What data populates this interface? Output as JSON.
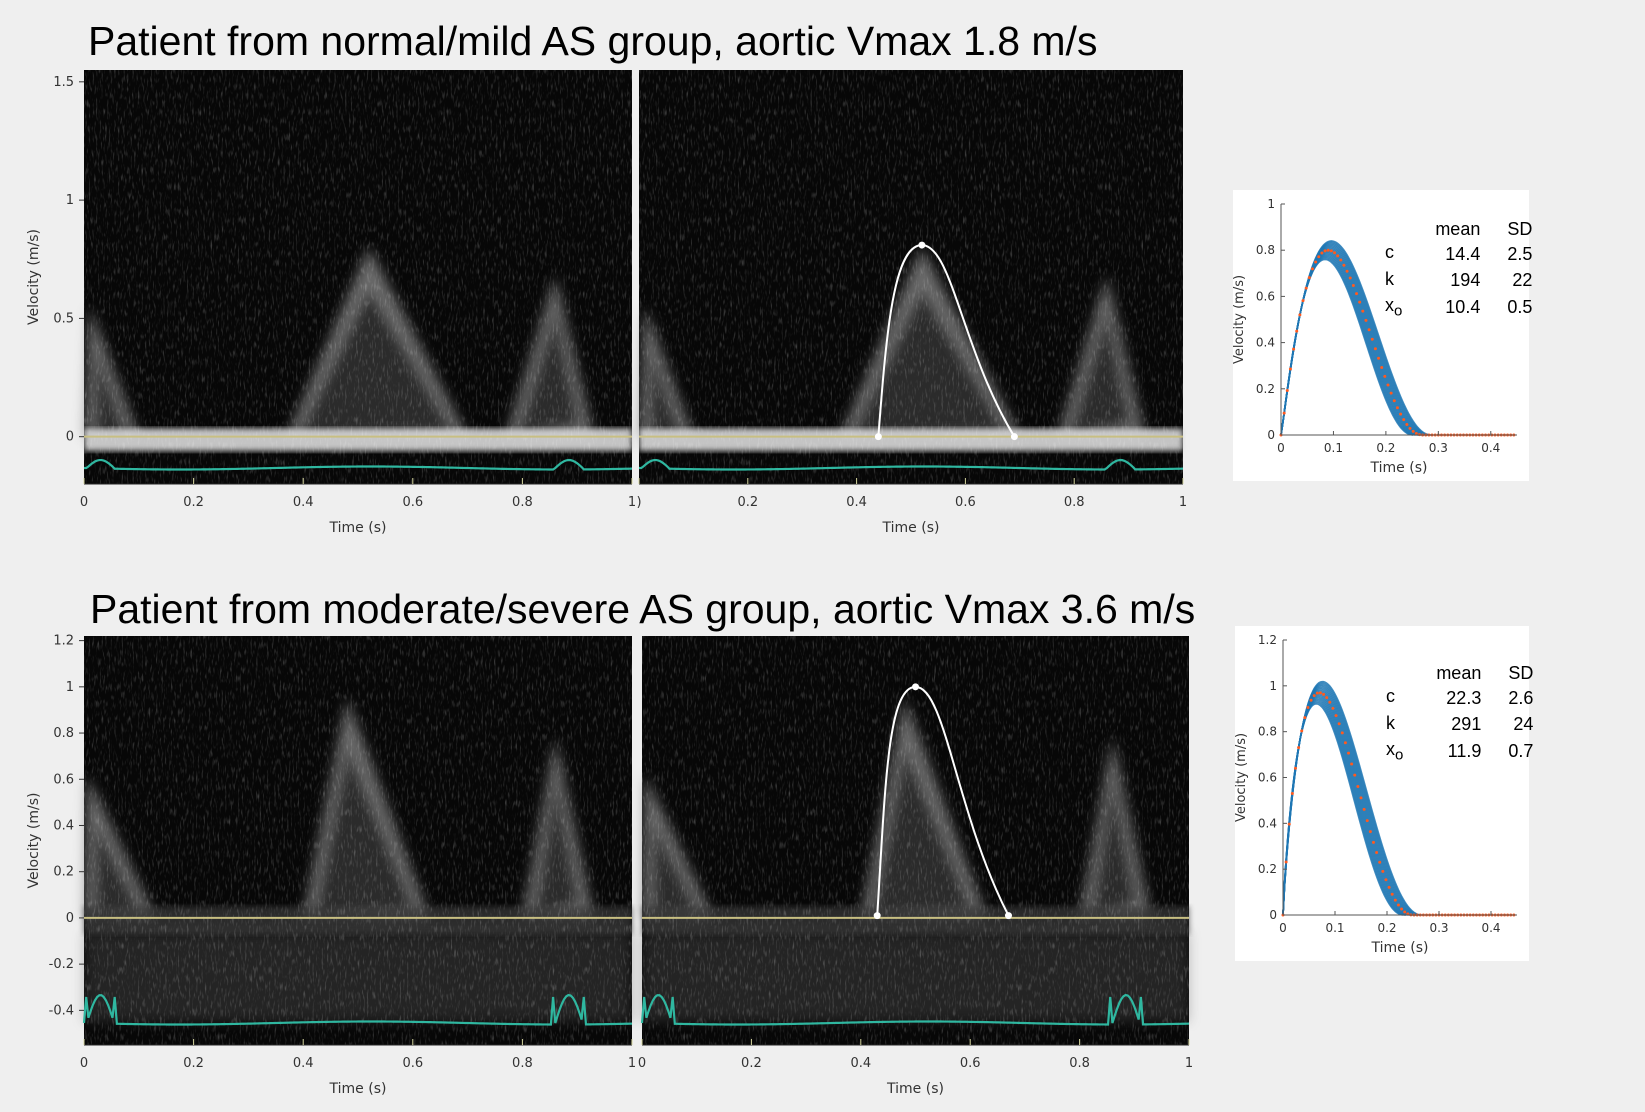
{
  "colors": {
    "background": "#efefef",
    "doppler_dark": "#070707",
    "baseline": "#c8bf82",
    "ecg": "#2fb7a0",
    "trace": "#ffffff",
    "fit_curves": "#1f77b4",
    "fit_mean": "#ff5a1f"
  },
  "titles": {
    "top": "Patient from normal/mild AS group, aortic Vmax 1.8 m/s",
    "bottom": "Patient from moderate/severe AS group, aortic Vmax 3.6 m/s"
  },
  "tables": {
    "top": {
      "header": {
        "mean": "mean",
        "sd": "SD"
      },
      "rows": [
        {
          "label": "c",
          "sub": "",
          "mean": "14.4",
          "sd": "2.5"
        },
        {
          "label": "k",
          "sub": "",
          "mean": "194",
          "sd": "22"
        },
        {
          "label": "x",
          "sub": "o",
          "mean": "10.4",
          "sd": "0.5"
        }
      ]
    },
    "bottom": {
      "header": {
        "mean": "mean",
        "sd": "SD"
      },
      "rows": [
        {
          "label": "c",
          "sub": "",
          "mean": "22.3",
          "sd": "2.6"
        },
        {
          "label": "k",
          "sub": "",
          "mean": "291",
          "sd": "24"
        },
        {
          "label": "x",
          "sub": "o",
          "mean": "11.9",
          "sd": "0.7"
        }
      ]
    }
  },
  "chart_data": [
    {
      "id": "top-left",
      "type": "line",
      "xlabel": "Time (s)",
      "ylabel": "Velocity (m/s)",
      "xlim": [
        0,
        1
      ],
      "ylim": [
        -0.2,
        1.55
      ],
      "xticks": [
        0,
        0.2,
        0.4,
        0.6,
        0.8,
        1
      ],
      "xtick_labels": [
        "0",
        "0.2",
        "0.4",
        "0.6",
        "0.8",
        "1"
      ],
      "yticks": [
        0,
        0.5,
        1,
        1.5
      ],
      "ytick_labels": [
        "0",
        "0.5",
        "1",
        "1.5"
      ],
      "baseline": 0
    },
    {
      "id": "top-middle",
      "type": "line",
      "xlabel": "Time (s)",
      "ylabel": "",
      "xlim": [
        0,
        1
      ],
      "ylim": [
        -0.2,
        1.55
      ],
      "xticks": [
        0,
        0.2,
        0.4,
        0.6,
        0.8,
        1
      ],
      "xtick_labels": [
        ")",
        "0.2",
        "0.4",
        "0.6",
        "0.8",
        "1"
      ],
      "yticks": [],
      "ytick_labels": [],
      "baseline": 0,
      "trace": {
        "points": [
          [
            0.44,
            0.0
          ],
          [
            0.52,
            0.81
          ],
          [
            0.69,
            0.0
          ]
        ],
        "peak": [
          0.52,
          0.81
        ]
      }
    },
    {
      "id": "top-right",
      "type": "line",
      "xlabel": "Time (s)",
      "ylabel": "Velocity (m/s)",
      "xlim": [
        0,
        0.45
      ],
      "ylim": [
        0,
        1
      ],
      "xticks": [
        0,
        0.1,
        0.2,
        0.3,
        0.4
      ],
      "xtick_labels": [
        "0",
        "0.1",
        "0.2",
        "0.3",
        "0.4"
      ],
      "yticks": [
        0,
        0.2,
        0.4,
        0.6,
        0.8,
        1
      ],
      "ytick_labels": [
        "0",
        "0.2",
        "0.4",
        "0.6",
        "0.8",
        "1"
      ],
      "fit": {
        "peak_velocity": 0.8,
        "peak_time": 0.09,
        "end_time": 0.27,
        "curves": 16
      }
    },
    {
      "id": "bottom-left",
      "type": "line",
      "xlabel": "Time (s)",
      "ylabel": "Velocity (m/s)",
      "xlim": [
        0,
        1
      ],
      "ylim": [
        -0.55,
        1.22
      ],
      "xticks": [
        0,
        0.2,
        0.4,
        0.6,
        0.8,
        1
      ],
      "xtick_labels": [
        "0",
        "0.2",
        "0.4",
        "0.6",
        "0.8",
        "1"
      ],
      "yticks": [
        -0.4,
        -0.2,
        0,
        0.2,
        0.4,
        0.6,
        0.8,
        1,
        1.2
      ],
      "ytick_labels": [
        "-0.4",
        "-0.2",
        "0",
        "0.2",
        "0.4",
        "0.6",
        "0.8",
        "1",
        "1.2"
      ],
      "baseline": 0
    },
    {
      "id": "bottom-middle",
      "type": "line",
      "xlabel": "Time (s)",
      "ylabel": "",
      "xlim": [
        0,
        1
      ],
      "ylim": [
        -0.55,
        1.22
      ],
      "xticks": [
        0,
        0.2,
        0.4,
        0.6,
        0.8,
        1
      ],
      "xtick_labels": [
        "0",
        "0.2",
        "0.4",
        "0.6",
        "0.8",
        "1"
      ],
      "yticks": [],
      "ytick_labels": [],
      "baseline": 0,
      "trace": {
        "points": [
          [
            0.43,
            0.01
          ],
          [
            0.5,
            1.0
          ],
          [
            0.67,
            0.01
          ]
        ],
        "peak": [
          0.5,
          1.0
        ]
      }
    },
    {
      "id": "bottom-right",
      "type": "line",
      "xlabel": "Time (s)",
      "ylabel": "Velocity (m/s)",
      "xlim": [
        0,
        0.45
      ],
      "ylim": [
        0,
        1.2
      ],
      "xticks": [
        0,
        0.1,
        0.2,
        0.3,
        0.4
      ],
      "xtick_labels": [
        "0",
        "0.1",
        "0.2",
        "0.3",
        "0.4"
      ],
      "yticks": [
        0,
        0.2,
        0.4,
        0.6,
        0.8,
        1,
        1.2
      ],
      "ytick_labels": [
        "0",
        "0.2",
        "0.4",
        "0.6",
        "0.8",
        "1",
        "1.2"
      ],
      "fit": {
        "peak_velocity": 0.97,
        "peak_time": 0.07,
        "end_time": 0.25,
        "curves": 16
      }
    }
  ]
}
